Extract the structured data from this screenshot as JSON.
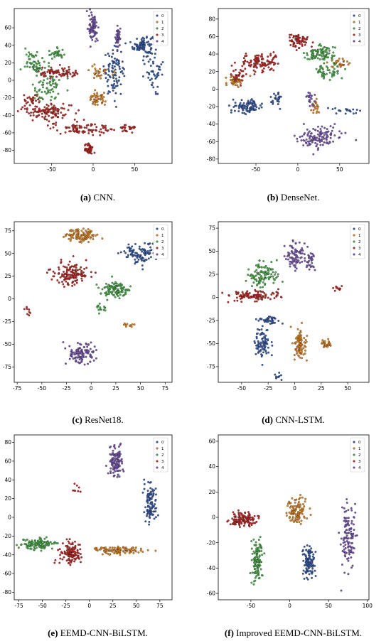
{
  "colors": [
    "#3a5ea8",
    "#e08a2c",
    "#4fae4f",
    "#c0302c",
    "#7b5bb0"
  ],
  "legend_labels": [
    "0",
    "1",
    "2",
    "3",
    "4"
  ],
  "chart_data": [
    {
      "type": "scatter",
      "panel": "a",
      "caption_letter": "(a)",
      "caption_text": " CNN.",
      "xlim": [
        -95,
        95
      ],
      "ylim": [
        -95,
        82
      ],
      "xticks": [
        -50,
        0,
        50
      ],
      "yticks": [
        -80,
        -60,
        -40,
        -20,
        0,
        20,
        40,
        60
      ],
      "series": [
        {
          "label": "0",
          "clusters": [
            [
              60,
              40,
              10,
              10,
              90
            ],
            [
              25,
              10,
              10,
              22,
              90
            ],
            [
              75,
              5,
              12,
              15,
              40
            ]
          ]
        },
        {
          "label": "1",
          "clusters": [
            [
              5,
              -22,
              8,
              6,
              50
            ],
            [
              10,
              10,
              12,
              8,
              30
            ]
          ]
        },
        {
          "label": "2",
          "clusters": [
            [
              -70,
              20,
              10,
              10,
              60
            ],
            [
              -45,
              30,
              8,
              5,
              30
            ],
            [
              -55,
              -10,
              15,
              18,
              70
            ]
          ]
        },
        {
          "label": "3",
          "clusters": [
            [
              -55,
              -35,
              25,
              8,
              110
            ],
            [
              -10,
              -55,
              35,
              6,
              90
            ],
            [
              -5,
              -78,
              6,
              6,
              40
            ],
            [
              -40,
              8,
              20,
              5,
              80
            ],
            [
              -75,
              -25,
              8,
              8,
              30
            ],
            [
              40,
              -55,
              10,
              4,
              25
            ]
          ]
        },
        {
          "label": "4",
          "clusters": [
            [
              0,
              60,
              4,
              12,
              80
            ],
            [
              30,
              48,
              3,
              10,
              40
            ]
          ]
        }
      ]
    },
    {
      "type": "scatter",
      "panel": "b",
      "caption_letter": "(b)",
      "caption_text": " DenseNet.",
      "xlim": [
        -95,
        85
      ],
      "ylim": [
        -85,
        92
      ],
      "xticks": [
        -50,
        0,
        50
      ],
      "yticks": [
        -80,
        -60,
        -40,
        -20,
        0,
        20,
        40,
        60,
        80
      ],
      "series": [
        {
          "label": "0",
          "clusters": [
            [
              -60,
              -20,
              15,
              6,
              90
            ],
            [
              -25,
              -10,
              5,
              6,
              30
            ],
            [
              60,
              -25,
              15,
              3,
              20
            ]
          ]
        },
        {
          "label": "1",
          "clusters": [
            [
              -75,
              10,
              10,
              5,
              40
            ],
            [
              50,
              30,
              8,
              5,
              30
            ],
            [
              20,
              -20,
              5,
              8,
              20
            ]
          ]
        },
        {
          "label": "2",
          "clusters": [
            [
              25,
              40,
              15,
              8,
              90
            ],
            [
              35,
              20,
              15,
              8,
              50
            ]
          ]
        },
        {
          "label": "3",
          "clusters": [
            [
              -45,
              30,
              20,
              8,
              110
            ],
            [
              0,
              55,
              10,
              8,
              70
            ],
            [
              -70,
              15,
              8,
              5,
              30
            ]
          ]
        },
        {
          "label": "4",
          "clusters": [
            [
              25,
              -55,
              20,
              10,
              120
            ],
            [
              15,
              -10,
              5,
              8,
              20
            ]
          ]
        }
      ]
    },
    {
      "type": "scatter",
      "panel": "c",
      "caption_letter": "(c)",
      "caption_text": " ResNet18.",
      "xlim": [
        -78,
        82
      ],
      "ylim": [
        -92,
        85
      ],
      "xticks": [
        -75,
        -50,
        -25,
        0,
        25,
        50,
        75
      ],
      "yticks": [
        -75,
        -50,
        -25,
        0,
        25,
        50,
        75
      ],
      "series": [
        {
          "label": "0",
          "clusters": [
            [
              50,
              50,
              14,
              9,
              100
            ]
          ]
        },
        {
          "label": "1",
          "clusters": [
            [
              -10,
              70,
              14,
              6,
              110
            ],
            [
              40,
              -28,
              5,
              3,
              10
            ]
          ]
        },
        {
          "label": "2",
          "clusters": [
            [
              25,
              10,
              12,
              7,
              110
            ],
            [
              10,
              -10,
              5,
              5,
              15
            ]
          ]
        },
        {
          "label": "3",
          "clusters": [
            [
              -20,
              28,
              14,
              10,
              140
            ],
            [
              -65,
              -15,
              3,
              3,
              8
            ]
          ]
        },
        {
          "label": "4",
          "clusters": [
            [
              -10,
              -60,
              12,
              10,
              110
            ]
          ]
        }
      ]
    },
    {
      "type": "scatter",
      "panel": "d",
      "caption_letter": "(d)",
      "caption_text": " CNN-LSTM.",
      "xlim": [
        -72,
        70
      ],
      "ylim": [
        -92,
        82
      ],
      "xticks": [
        -50,
        -25,
        0,
        25,
        50
      ],
      "yticks": [
        -75,
        -50,
        -25,
        0,
        25,
        50,
        75
      ],
      "series": [
        {
          "label": "0",
          "clusters": [
            [
              -30,
              -50,
              6,
              15,
              80
            ],
            [
              -25,
              -25,
              10,
              4,
              40
            ],
            [
              -15,
              -85,
              3,
              3,
              10
            ]
          ]
        },
        {
          "label": "1",
          "clusters": [
            [
              5,
              -50,
              5,
              14,
              90
            ],
            [
              30,
              -50,
              5,
              4,
              30
            ]
          ]
        },
        {
          "label": "2",
          "clusters": [
            [
              -30,
              25,
              12,
              12,
              110
            ]
          ]
        },
        {
          "label": "3",
          "clusters": [
            [
              -40,
              2,
              20,
              5,
              110
            ],
            [
              40,
              10,
              5,
              3,
              10
            ]
          ]
        },
        {
          "label": "4",
          "clusters": [
            [
              0,
              45,
              8,
              12,
              80
            ],
            [
              15,
              40,
              4,
              8,
              30
            ]
          ]
        }
      ]
    },
    {
      "type": "scatter",
      "panel": "e",
      "caption_letter": "(e)",
      "caption_text": " EEMD-CNN-BiLSTM.",
      "xlim": [
        -80,
        88
      ],
      "ylim": [
        -88,
        88
      ],
      "xticks": [
        -75,
        -50,
        -25,
        0,
        25,
        50,
        75
      ],
      "yticks": [
        -80,
        -60,
        -40,
        -20,
        0,
        20,
        40,
        60,
        80
      ],
      "series": [
        {
          "label": "0",
          "clusters": [
            [
              65,
              15,
              5,
              18,
              110
            ]
          ]
        },
        {
          "label": "1",
          "clusters": [
            [
              30,
              -35,
              20,
              3,
              110
            ]
          ]
        },
        {
          "label": "2",
          "clusters": [
            [
              -55,
              -28,
              15,
              5,
              120
            ]
          ]
        },
        {
          "label": "3",
          "clusters": [
            [
              -20,
              -38,
              10,
              10,
              120
            ],
            [
              -15,
              30,
              3,
              5,
              8
            ]
          ]
        },
        {
          "label": "4",
          "clusters": [
            [
              28,
              60,
              6,
              14,
              110
            ]
          ]
        }
      ]
    },
    {
      "type": "scatter",
      "panel": "f",
      "caption_letter": "(f)",
      "caption_text": " Improved EEMD-CNN-BiLSTM.",
      "xlim": [
        -92,
        102
      ],
      "ylim": [
        -65,
        65
      ],
      "xticks": [
        -50,
        0,
        50,
        100
      ],
      "yticks": [
        -60,
        -40,
        -20,
        0,
        20,
        40,
        60
      ],
      "series": [
        {
          "label": "0",
          "clusters": [
            [
              25,
              -35,
              6,
              12,
              110
            ]
          ]
        },
        {
          "label": "1",
          "clusters": [
            [
              8,
              5,
              10,
              9,
              110
            ]
          ]
        },
        {
          "label": "2",
          "clusters": [
            [
              -42,
              -35,
              6,
              13,
              120
            ]
          ]
        },
        {
          "label": "3",
          "clusters": [
            [
              -60,
              -2,
              14,
              5,
              120
            ]
          ]
        },
        {
          "label": "4",
          "clusters": [
            [
              75,
              -15,
              8,
              20,
              120
            ]
          ]
        }
      ]
    }
  ]
}
